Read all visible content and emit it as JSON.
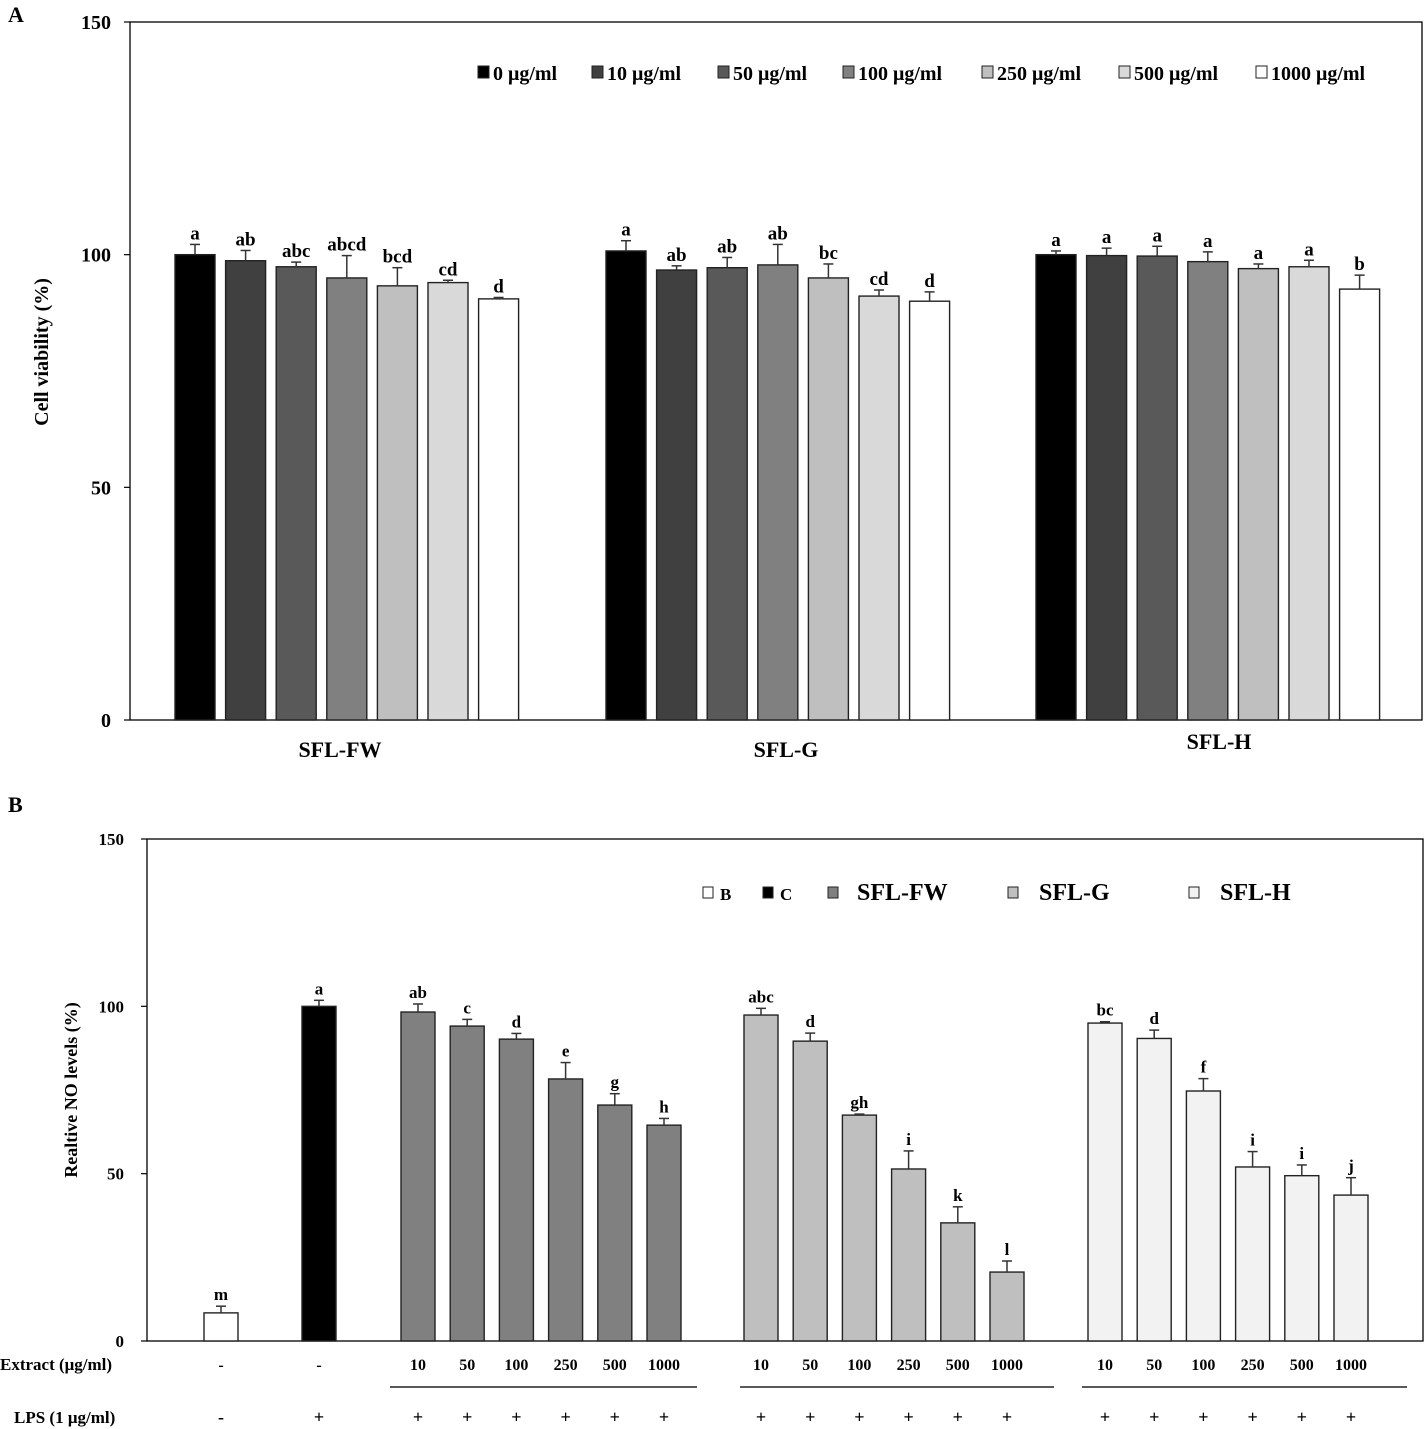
{
  "chart_data": [
    {
      "panel_label": "A",
      "type": "bar",
      "title": "",
      "xlabel": "",
      "ylabel": "Cell viability (%)",
      "ylim": [
        0,
        150
      ],
      "yticks": [
        0,
        50,
        100,
        150
      ],
      "grid": false,
      "legend_position": "top-right",
      "categories": [
        "SFL-FW",
        "SFL-G",
        "SFL-H"
      ],
      "series": [
        {
          "name": "0 μg/ml",
          "color": "#000000",
          "values": [
            100.0,
            100.8,
            100.0
          ],
          "errors": [
            2.2,
            2.2,
            0.8
          ],
          "labels": [
            "a",
            "a",
            "a"
          ]
        },
        {
          "name": "10 μg/ml",
          "color": "#404040",
          "values": [
            98.7,
            96.7,
            99.8
          ],
          "errors": [
            2.2,
            0.9,
            1.6
          ],
          "labels": [
            "ab",
            "ab",
            "a"
          ]
        },
        {
          "name": "50 μg/ml",
          "color": "#595959",
          "values": [
            97.4,
            97.2,
            99.7
          ],
          "errors": [
            1.0,
            2.2,
            2.1
          ],
          "labels": [
            "abc",
            "ab",
            "a"
          ]
        },
        {
          "name": "100 μg/ml",
          "color": "#808080",
          "values": [
            95.0,
            97.8,
            98.5
          ],
          "errors": [
            4.8,
            4.4,
            2.1
          ],
          "labels": [
            "abcd",
            "ab",
            "a"
          ]
        },
        {
          "name": "250 μg/ml",
          "color": "#bfbfbf",
          "values": [
            93.3,
            95.0,
            97.0
          ],
          "errors": [
            3.9,
            3.0,
            1.0
          ],
          "labels": [
            "bcd",
            "bc",
            "a"
          ]
        },
        {
          "name": "500 μg/ml",
          "color": "#d9d9d9",
          "values": [
            94.0,
            91.1,
            97.4
          ],
          "errors": [
            0.5,
            1.3,
            1.4
          ],
          "labels": [
            "cd",
            "cd",
            "a"
          ]
        },
        {
          "name": "1000 μg/ml",
          "color": "#ffffff",
          "values": [
            90.5,
            90.0,
            92.6
          ],
          "errors": [
            0.3,
            2.0,
            3.0
          ],
          "labels": [
            "d",
            "d",
            "b"
          ]
        }
      ]
    },
    {
      "panel_label": "B",
      "type": "bar",
      "title": "",
      "xlabel": "",
      "ylabel": "Realtive NO levels (%)",
      "ylim": [
        0,
        150
      ],
      "yticks": [
        0,
        50,
        100,
        150
      ],
      "grid": false,
      "legend_position": "top-right",
      "legend": [
        {
          "name": "B",
          "color": "#ffffff"
        },
        {
          "name": "C",
          "color": "#000000"
        },
        {
          "name": "SFL-FW",
          "color": "#808080"
        },
        {
          "name": "SFL-G",
          "color": "#bfbfbf"
        },
        {
          "name": "SFL-H",
          "color": "#f2f2f2"
        }
      ],
      "row_labels": {
        "extract": "Extract (μg/ml)",
        "lps": "LPS (1 μg/ml)"
      },
      "groups": [
        {
          "name": "B",
          "color": "#ffffff",
          "extract": [
            "-"
          ],
          "lps": [
            "-"
          ],
          "values": [
            8.4
          ],
          "errors": [
            2.0
          ],
          "labels": [
            "m"
          ],
          "underline": false
        },
        {
          "name": "C",
          "color": "#000000",
          "extract": [
            "-"
          ],
          "lps": [
            "+"
          ],
          "values": [
            100.0
          ],
          "errors": [
            1.8
          ],
          "labels": [
            "a"
          ],
          "underline": false
        },
        {
          "name": "SFL-FW",
          "color": "#808080",
          "extract": [
            "10",
            "50",
            "100",
            "250",
            "500",
            "1000"
          ],
          "lps": [
            "+",
            "+",
            "+",
            "+",
            "+",
            "+"
          ],
          "values": [
            98.3,
            94.1,
            90.2,
            78.3,
            70.5,
            64.5
          ],
          "errors": [
            2.4,
            2.0,
            1.7,
            4.9,
            3.4,
            2.0
          ],
          "labels": [
            "ab",
            "c",
            "d",
            "e",
            "g",
            "h"
          ],
          "underline": true
        },
        {
          "name": "SFL-G",
          "color": "#bfbfbf",
          "extract": [
            "10",
            "50",
            "100",
            "250",
            "500",
            "1000"
          ],
          "lps": [
            "+",
            "+",
            "+",
            "+",
            "+",
            "+"
          ],
          "values": [
            97.4,
            89.6,
            67.5,
            51.4,
            35.3,
            20.6
          ],
          "errors": [
            2.0,
            2.4,
            0.3,
            5.4,
            4.8,
            3.3
          ],
          "labels": [
            "abc",
            "d",
            "gh",
            "i",
            "k",
            "l"
          ],
          "underline": true
        },
        {
          "name": "SFL-H",
          "color": "#f2f2f2",
          "extract": [
            "10",
            "50",
            "100",
            "250",
            "500",
            "1000"
          ],
          "lps": [
            "+",
            "+",
            "+",
            "+",
            "+",
            "+"
          ],
          "values": [
            95.0,
            90.4,
            74.7,
            52.0,
            49.4,
            43.6
          ],
          "errors": [
            0.4,
            2.5,
            3.7,
            4.6,
            3.2,
            5.2
          ],
          "labels": [
            "bc",
            "d",
            "f",
            "i",
            "i",
            "j"
          ],
          "underline": true
        }
      ]
    }
  ]
}
